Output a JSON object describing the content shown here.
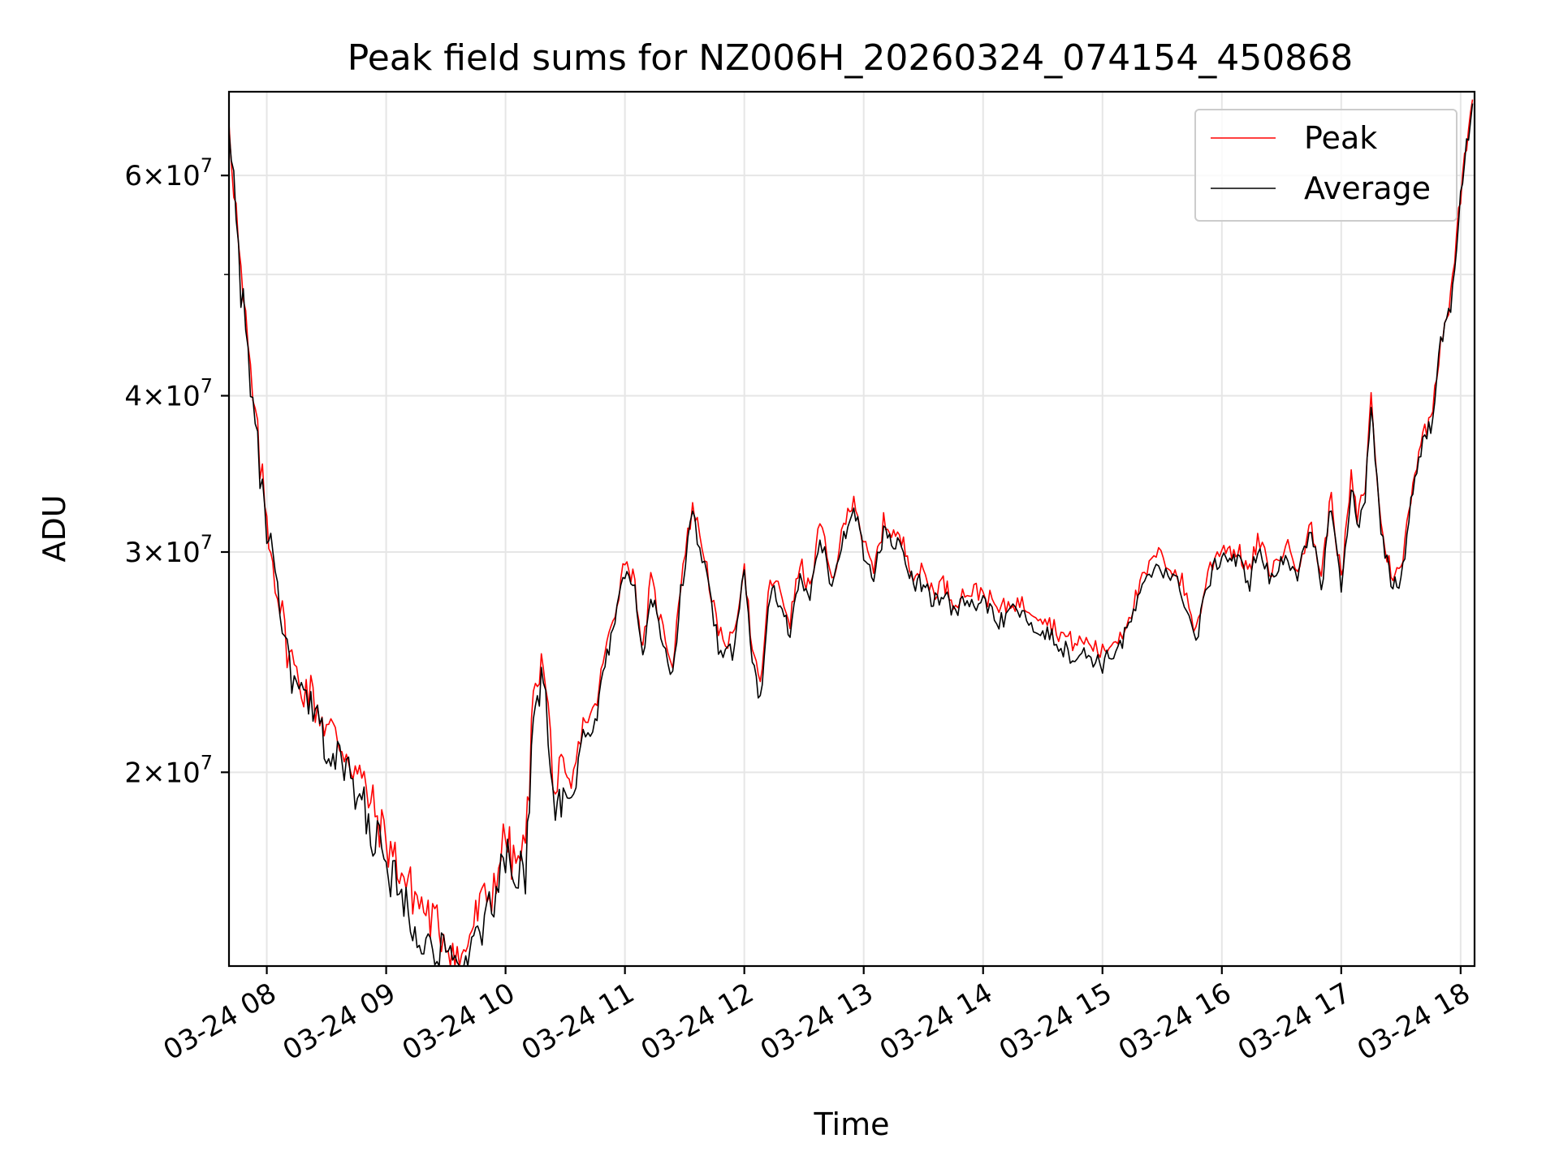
{
  "chart_data": {
    "type": "line",
    "title": "Peak field sums for NZ006H_20260324_074154_450868",
    "xlabel": "Time",
    "ylabel": "ADU",
    "x_ticks": [
      "03-24 08",
      "03-24 09",
      "03-24 10",
      "03-24 11",
      "03-24 12",
      "03-24 13",
      "03-24 14",
      "03-24 15",
      "03-24 16",
      "03-24 17",
      "03-24 18"
    ],
    "y_scale": "log",
    "y_ticks": [
      {
        "value": 20000000,
        "mantissa": "2",
        "exponent": "7"
      },
      {
        "value": 30000000,
        "mantissa": "3",
        "exponent": "7"
      },
      {
        "value": 40000000,
        "mantissa": "4",
        "exponent": "7"
      },
      {
        "value": 60000000,
        "mantissa": "6",
        "exponent": "7"
      }
    ],
    "y_tick_times": "×10",
    "y_minor_ticks": [
      50000000
    ],
    "xlim": [
      "2026-03-24 07:41",
      "2026-03-24 18:07"
    ],
    "ylim": [
      14000000,
      70000000
    ],
    "grid": true,
    "legend_position": "top-right",
    "series": [
      {
        "name": "Peak",
        "color": "#ff0000",
        "x": [
          "2026-03-24 07:41",
          "2026-03-24 07:47",
          "2026-03-24 07:53",
          "2026-03-24 07:59",
          "2026-03-24 08:03",
          "2026-03-24 08:09",
          "2026-03-24 08:15",
          "2026-03-24 08:21",
          "2026-03-24 08:30",
          "2026-03-24 08:40",
          "2026-03-24 08:50",
          "2026-03-24 09:00",
          "2026-03-24 09:10",
          "2026-03-24 09:20",
          "2026-03-24 09:30",
          "2026-03-24 09:38",
          "2026-03-24 09:42",
          "2026-03-24 09:47",
          "2026-03-24 09:53",
          "2026-03-24 10:00",
          "2026-03-24 10:04",
          "2026-03-24 10:10",
          "2026-03-24 10:15",
          "2026-03-24 10:19",
          "2026-03-24 10:25",
          "2026-03-24 10:28",
          "2026-03-24 10:33",
          "2026-03-24 10:39",
          "2026-03-24 10:45",
          "2026-03-24 10:50",
          "2026-03-24 10:55",
          "2026-03-24 11:00",
          "2026-03-24 11:05",
          "2026-03-24 11:09",
          "2026-03-24 11:13",
          "2026-03-24 11:18",
          "2026-03-24 11:24",
          "2026-03-24 11:28",
          "2026-03-24 11:34",
          "2026-03-24 11:40",
          "2026-03-24 11:47",
          "2026-03-24 11:54",
          "2026-03-24 12:00",
          "2026-03-24 12:04",
          "2026-03-24 12:08",
          "2026-03-24 12:13",
          "2026-03-24 12:18",
          "2026-03-24 12:23",
          "2026-03-24 12:28",
          "2026-03-24 12:33",
          "2026-03-24 12:38",
          "2026-03-24 12:44",
          "2026-03-24 12:50",
          "2026-03-24 12:55",
          "2026-03-24 13:00",
          "2026-03-24 13:05",
          "2026-03-24 13:10",
          "2026-03-24 13:15",
          "2026-03-24 13:20",
          "2026-03-24 13:25",
          "2026-03-24 13:30",
          "2026-03-24 13:35",
          "2026-03-24 13:40",
          "2026-03-24 13:45",
          "2026-03-24 13:52",
          "2026-03-24 14:00",
          "2026-03-24 14:08",
          "2026-03-24 14:15",
          "2026-03-24 14:23",
          "2026-03-24 14:30",
          "2026-03-24 14:38",
          "2026-03-24 14:45",
          "2026-03-24 14:53",
          "2026-03-24 15:00",
          "2026-03-24 15:10",
          "2026-03-24 15:20",
          "2026-03-24 15:27",
          "2026-03-24 15:33",
          "2026-03-24 15:40",
          "2026-03-24 15:47",
          "2026-03-24 15:53",
          "2026-03-24 16:00",
          "2026-03-24 16:05",
          "2026-03-24 16:09",
          "2026-03-24 16:14",
          "2026-03-24 16:18",
          "2026-03-24 16:25",
          "2026-03-24 16:32",
          "2026-03-24 16:38",
          "2026-03-24 16:45",
          "2026-03-24 16:50",
          "2026-03-24 16:55",
          "2026-03-24 17:00",
          "2026-03-24 17:05",
          "2026-03-24 17:08",
          "2026-03-24 17:12",
          "2026-03-24 17:15",
          "2026-03-24 17:20",
          "2026-03-24 17:25",
          "2026-03-24 17:30",
          "2026-03-24 17:35",
          "2026-03-24 17:40",
          "2026-03-24 17:45",
          "2026-03-24 17:50",
          "2026-03-24 17:55",
          "2026-03-24 18:00",
          "2026-03-24 18:03",
          "2026-03-24 18:06"
        ],
        "values": [
          68000000,
          50000000,
          40000000,
          33000000,
          30000000,
          26000000,
          24000000,
          23500000,
          22000000,
          21000000,
          19500000,
          17800000,
          16500000,
          15600000,
          14900000,
          14200000,
          15000000,
          15700000,
          16200000,
          18000000,
          17000000,
          17500000,
          24500000,
          24500000,
          19500000,
          20000000,
          19500000,
          22000000,
          22500000,
          25000000,
          27000000,
          29800000,
          28500000,
          25000000,
          28600000,
          26500000,
          24500000,
          28500000,
          32800000,
          30000000,
          25800000,
          25500000,
          29500000,
          25000000,
          23500000,
          28700000,
          28000000,
          26500000,
          29500000,
          28000000,
          31800000,
          28500000,
          31500000,
          33500000,
          30500000,
          29000000,
          31800000,
          31200000,
          30500000,
          29000000,
          29000000,
          28000000,
          28500000,
          27500000,
          28000000,
          28000000,
          27000000,
          27500000,
          27200000,
          26800000,
          26000000,
          25500000,
          25500000,
          25000000,
          26000000,
          28500000,
          30000000,
          29500000,
          28500000,
          26000000,
          29000000,
          30500000,
          30200000,
          30000000,
          29000000,
          30800000,
          29000000,
          30500000,
          29500000,
          31500000,
          28800000,
          33500000,
          28500000,
          34500000,
          32000000,
          34000000,
          40000000,
          31500000,
          29000000,
          29000000,
          33500000,
          37000000,
          38500000,
          44500000,
          48000000,
          58000000,
          64000000,
          69000000
        ]
      },
      {
        "name": "Average",
        "color": "#000000",
        "x": [
          "2026-03-24 07:41",
          "2026-03-24 07:47",
          "2026-03-24 07:53",
          "2026-03-24 07:59",
          "2026-03-24 08:03",
          "2026-03-24 08:09",
          "2026-03-24 08:15",
          "2026-03-24 08:21",
          "2026-03-24 08:30",
          "2026-03-24 08:40",
          "2026-03-24 08:50",
          "2026-03-24 09:00",
          "2026-03-24 09:10",
          "2026-03-24 09:20",
          "2026-03-24 09:30",
          "2026-03-24 09:38",
          "2026-03-24 09:42",
          "2026-03-24 09:47",
          "2026-03-24 09:53",
          "2026-03-24 10:00",
          "2026-03-24 10:04",
          "2026-03-24 10:10",
          "2026-03-24 10:15",
          "2026-03-24 10:19",
          "2026-03-24 10:25",
          "2026-03-24 10:28",
          "2026-03-24 10:33",
          "2026-03-24 10:39",
          "2026-03-24 10:45",
          "2026-03-24 10:50",
          "2026-03-24 10:55",
          "2026-03-24 11:00",
          "2026-03-24 11:05",
          "2026-03-24 11:09",
          "2026-03-24 11:13",
          "2026-03-24 11:18",
          "2026-03-24 11:24",
          "2026-03-24 11:28",
          "2026-03-24 11:34",
          "2026-03-24 11:40",
          "2026-03-24 11:47",
          "2026-03-24 11:54",
          "2026-03-24 12:00",
          "2026-03-24 12:04",
          "2026-03-24 12:08",
          "2026-03-24 12:13",
          "2026-03-24 12:18",
          "2026-03-24 12:23",
          "2026-03-24 12:28",
          "2026-03-24 12:33",
          "2026-03-24 12:38",
          "2026-03-24 12:44",
          "2026-03-24 12:50",
          "2026-03-24 12:55",
          "2026-03-24 13:00",
          "2026-03-24 13:05",
          "2026-03-24 13:10",
          "2026-03-24 13:15",
          "2026-03-24 13:20",
          "2026-03-24 13:25",
          "2026-03-24 13:30",
          "2026-03-24 13:35",
          "2026-03-24 13:40",
          "2026-03-24 13:45",
          "2026-03-24 13:52",
          "2026-03-24 14:00",
          "2026-03-24 14:08",
          "2026-03-24 14:15",
          "2026-03-24 14:23",
          "2026-03-24 14:30",
          "2026-03-24 14:38",
          "2026-03-24 14:45",
          "2026-03-24 14:53",
          "2026-03-24 15:00",
          "2026-03-24 15:10",
          "2026-03-24 15:20",
          "2026-03-24 15:27",
          "2026-03-24 15:33",
          "2026-03-24 15:40",
          "2026-03-24 15:47",
          "2026-03-24 15:53",
          "2026-03-24 16:00",
          "2026-03-24 16:05",
          "2026-03-24 16:09",
          "2026-03-24 16:14",
          "2026-03-24 16:18",
          "2026-03-24 16:25",
          "2026-03-24 16:32",
          "2026-03-24 16:38",
          "2026-03-24 16:45",
          "2026-03-24 16:50",
          "2026-03-24 16:55",
          "2026-03-24 17:00",
          "2026-03-24 17:05",
          "2026-03-24 17:08",
          "2026-03-24 17:12",
          "2026-03-24 17:15",
          "2026-03-24 17:20",
          "2026-03-24 17:25",
          "2026-03-24 17:30",
          "2026-03-24 17:35",
          "2026-03-24 17:40",
          "2026-03-24 17:45",
          "2026-03-24 17:50",
          "2026-03-24 17:55",
          "2026-03-24 18:00",
          "2026-03-24 18:03",
          "2026-03-24 18:06"
        ],
        "values": [
          67500000,
          49500000,
          39500000,
          32500000,
          29500000,
          25300000,
          23300000,
          22800000,
          21200000,
          20200000,
          18700000,
          17000000,
          15800000,
          14900000,
          14300000,
          13900000,
          14500000,
          15100000,
          15600000,
          17300000,
          16400000,
          16900000,
          23800000,
          23800000,
          18900000,
          19300000,
          18900000,
          21400000,
          21900000,
          24400000,
          26400000,
          29200000,
          27900000,
          24500000,
          28000000,
          25900000,
          24000000,
          27900000,
          32200000,
          29400000,
          25300000,
          25000000,
          28900000,
          24500000,
          23000000,
          28100000,
          27400000,
          26000000,
          28900000,
          27500000,
          31200000,
          28000000,
          30900000,
          32900000,
          30000000,
          28500000,
          31300000,
          30700000,
          30000000,
          28500000,
          28500000,
          27500000,
          28000000,
          27000000,
          27400000,
          27400000,
          26400000,
          26900000,
          26600000,
          26200000,
          25400000,
          24900000,
          24900000,
          24500000,
          25500000,
          28000000,
          29500000,
          29000000,
          28000000,
          25500000,
          28500000,
          30000000,
          29700000,
          29500000,
          28500000,
          30300000,
          28500000,
          30000000,
          29000000,
          31000000,
          28300000,
          33000000,
          28000000,
          34000000,
          31500000,
          33500000,
          39500000,
          31000000,
          28500000,
          28500000,
          33000000,
          36500000,
          38000000,
          44000000,
          47500000,
          57500000,
          63500000,
          68500000
        ]
      }
    ]
  }
}
